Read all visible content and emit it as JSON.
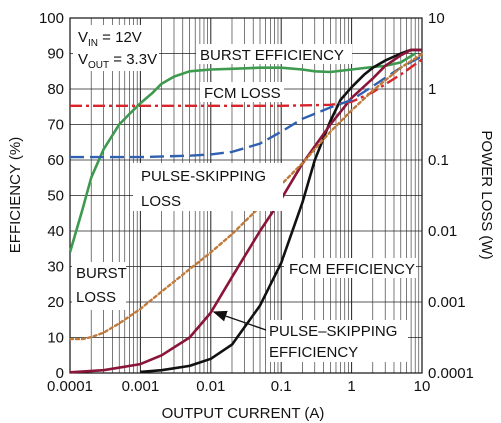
{
  "chart_data": {
    "type": "line",
    "title": "",
    "xlabel": "OUTPUT CURRENT (A)",
    "ylabel_left": "EFFICIENCY (%)",
    "ylabel_right": "POWER LOSS (W)",
    "x_scale": "log",
    "xlim": [
      0.0001,
      10
    ],
    "ylim_left": [
      0,
      100
    ],
    "ylim_right": [
      0.0001,
      10
    ],
    "y_right_scale": "log",
    "grid": true,
    "x_ticks": [
      "0.0001",
      "0.001",
      "0.01",
      "0.1",
      "1",
      "10"
    ],
    "y_left_ticks": [
      "0",
      "10",
      "20",
      "30",
      "40",
      "50",
      "60",
      "70",
      "80",
      "90",
      "100"
    ],
    "y_right_ticks": [
      "0.0001",
      "0.001",
      "0.01",
      "0.1",
      "1",
      "10"
    ],
    "conditions": {
      "vin_main": "V",
      "vin_sub": "IN",
      "vin_value": " = 12V",
      "vout_main": "V",
      "vout_sub": "OUT",
      "vout_value": " = 3.3V"
    },
    "annotations": {
      "burst_efficiency": "BURST EFFICIENCY",
      "fcm_loss": "FCM LOSS",
      "pulse_skipping_loss_1": "PULSE-SKIPPING",
      "pulse_skipping_loss_2": "LOSS",
      "burst_loss_1": "BURST",
      "burst_loss_2": "LOSS",
      "fcm_efficiency": "FCM EFFICIENCY",
      "pulse_skipping_efficiency_1": "PULSE–SKIPPING",
      "pulse_skipping_efficiency_2": "EFFICIENCY"
    },
    "series": [
      {
        "key": "burst_efficiency",
        "axis": "left",
        "color": "#3e9a4e",
        "dash": "solid",
        "x": [
          0.0001,
          0.00015,
          0.0002,
          0.0003,
          0.0005,
          0.0007,
          0.001,
          0.0015,
          0.002,
          0.003,
          0.005,
          0.01,
          0.02,
          0.05,
          0.1,
          0.2,
          0.3,
          0.5,
          1,
          2,
          3,
          5,
          8
        ],
        "y": [
          34,
          46,
          55,
          63,
          70,
          73,
          76,
          79,
          81.5,
          83.5,
          85,
          85.5,
          85.7,
          86,
          86,
          85.5,
          85,
          84.8,
          85.5,
          86.2,
          86.5,
          87.5,
          90
        ]
      },
      {
        "key": "fcm_efficiency",
        "axis": "left",
        "color": "#111111",
        "dash": "solid",
        "x": [
          0.001,
          0.002,
          0.005,
          0.01,
          0.02,
          0.05,
          0.1,
          0.2,
          0.3,
          0.5,
          0.7,
          1,
          1.5,
          2,
          3,
          5,
          7,
          10
        ],
        "y": [
          0.3,
          0.8,
          2,
          4,
          8,
          19,
          31,
          48,
          60,
          71,
          77,
          80.5,
          84,
          86,
          88,
          90,
          91,
          91
        ]
      },
      {
        "key": "pulse_skipping_efficiency",
        "axis": "left",
        "color": "#8a1538",
        "dash": "solid",
        "x": [
          0.0001,
          0.0003,
          0.001,
          0.002,
          0.005,
          0.01,
          0.02,
          0.05,
          0.1,
          0.2,
          0.5,
          1,
          2,
          3,
          5,
          7,
          10
        ],
        "y": [
          0.2,
          0.8,
          2.5,
          5,
          10,
          17,
          27,
          40,
          49,
          59,
          70,
          77.5,
          83,
          86.5,
          89.5,
          91,
          91
        ]
      },
      {
        "key": "fcm_loss",
        "axis": "right",
        "color": "#d8252b",
        "dash": "dashdot",
        "x": [
          0.0001,
          0.001,
          0.01,
          0.1,
          0.5,
          1,
          2,
          5,
          10
        ],
        "y": [
          0.58,
          0.58,
          0.58,
          0.58,
          0.6,
          0.66,
          0.9,
          1.6,
          2.6
        ]
      },
      {
        "key": "pulse_skipping_loss",
        "axis": "right",
        "color": "#3060b0",
        "dash": "longdash",
        "x": [
          0.0001,
          0.001,
          0.005,
          0.01,
          0.02,
          0.05,
          0.1,
          0.2,
          0.5,
          1,
          2,
          5,
          10
        ],
        "y": [
          0.11,
          0.11,
          0.115,
          0.12,
          0.13,
          0.17,
          0.25,
          0.38,
          0.55,
          0.7,
          1.1,
          2.0,
          2.9
        ]
      },
      {
        "key": "burst_loss",
        "axis": "right",
        "color": "#c07a3a",
        "dash": "dot",
        "x": [
          0.0001,
          0.00015,
          0.0002,
          0.0003,
          0.0005,
          0.001,
          0.002,
          0.005,
          0.01,
          0.02,
          0.05,
          0.1,
          0.2,
          0.5,
          1,
          2,
          5,
          10
        ],
        "y": [
          0.0003,
          0.0003,
          0.00032,
          0.00037,
          0.0005,
          0.0008,
          0.0014,
          0.0029,
          0.005,
          0.009,
          0.022,
          0.045,
          0.09,
          0.25,
          0.5,
          0.95,
          2.0,
          3.1
        ]
      }
    ]
  }
}
